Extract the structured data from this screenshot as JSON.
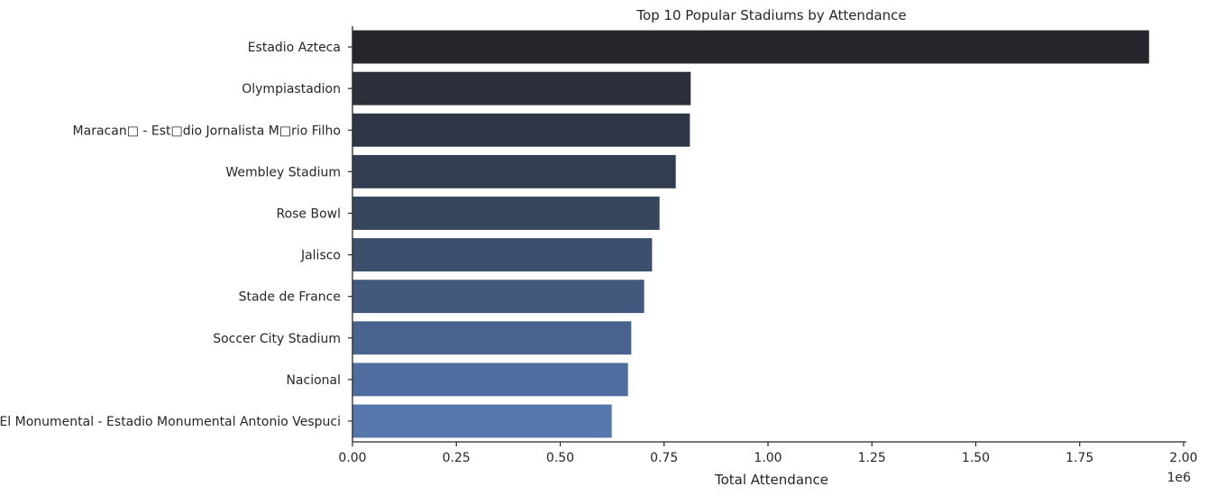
{
  "chart_data": {
    "type": "bar",
    "orientation": "horizontal",
    "title": "Top 10 Popular Stadiums by Attendance",
    "xlabel": "Total Attendance",
    "ylabel": "",
    "x_offset_text": "1e6",
    "xlim": [
      0,
      2.0
    ],
    "x_ticks": [
      "0.00",
      "0.25",
      "0.50",
      "0.75",
      "1.00",
      "1.25",
      "1.50",
      "1.75",
      "2.00"
    ],
    "grid": false,
    "categories": [
      "Estadio Azteca",
      "Olympiastadion",
      "Maracan□ - Est□dio Jornalista M□rio Filho",
      "Wembley Stadium",
      "Rose Bowl",
      "Jalisco",
      "Stade de France",
      "Soccer City Stadium",
      "Nacional",
      "El Monumental - Estadio Monumental Antonio Vespuci"
    ],
    "values": [
      1.917,
      0.814,
      0.812,
      0.778,
      0.739,
      0.721,
      0.702,
      0.671,
      0.663,
      0.624
    ],
    "colors": [
      "#25272c",
      "#2b303b",
      "#2f3646",
      "#323d52",
      "#37465f",
      "#3c4f6d",
      "#42597d",
      "#48648e",
      "#4f6e9f",
      "#5677ab"
    ]
  }
}
